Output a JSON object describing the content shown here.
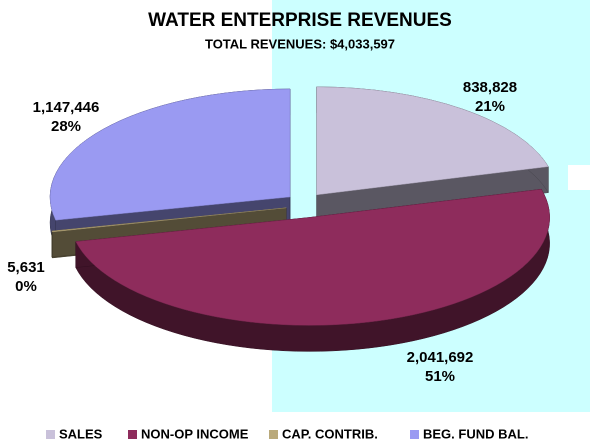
{
  "chart_data": {
    "type": "pie",
    "title": "WATER ENTERPRISE  REVENUES",
    "subtitle": "TOTAL REVENUES: $4,033,597",
    "categories": [
      "SALES",
      "NON-OP INCOME",
      "CAP. CONTRIB.",
      "BEG. FUND BAL."
    ],
    "values": [
      838828,
      2041692,
      5631,
      1147446
    ],
    "value_labels": [
      "838,828",
      "2,041,692",
      "5,631",
      "1,147,446"
    ],
    "percent_labels": [
      "21%",
      "51%",
      "0%",
      "28%"
    ],
    "colors": [
      "#c9c1da",
      "#8e2c5c",
      "#b9a97a",
      "#9a9af2"
    ],
    "legend": "bottom"
  }
}
